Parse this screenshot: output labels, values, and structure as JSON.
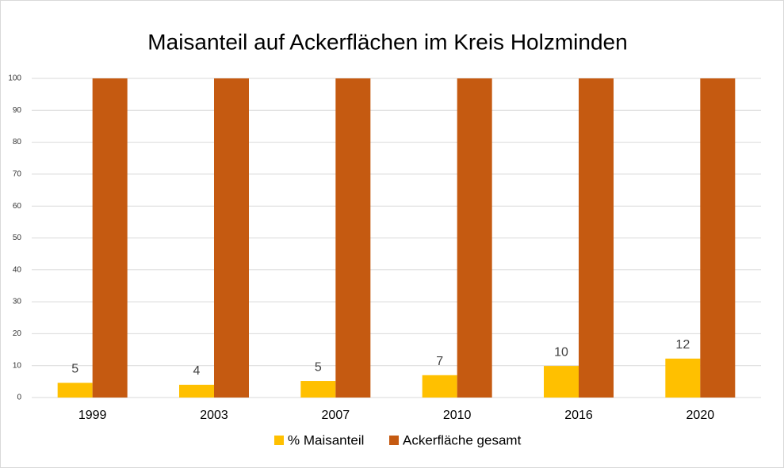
{
  "chart_data": {
    "type": "bar",
    "title": "Maisanteil auf Ackerflächen im Kreis Holzminden",
    "categories": [
      "1999",
      "2003",
      "2007",
      "2010",
      "2016",
      "2020"
    ],
    "series": [
      {
        "name": "% Maisanteil",
        "color": "#ffc000",
        "values": [
          4.6,
          4.0,
          5.2,
          7.0,
          9.9,
          12.2
        ],
        "value_labels": [
          "5",
          "4",
          "5",
          "7",
          "10",
          "12"
        ]
      },
      {
        "name": "Ackerfläche gesamt",
        "color": "#c55a11",
        "values": [
          100,
          100,
          100,
          100,
          100,
          100
        ]
      }
    ],
    "ylim": [
      0,
      100
    ],
    "yticks": [
      0,
      10,
      20,
      30,
      40,
      50,
      60,
      70,
      80,
      90,
      100
    ],
    "grid": true,
    "legend": "bottom"
  }
}
